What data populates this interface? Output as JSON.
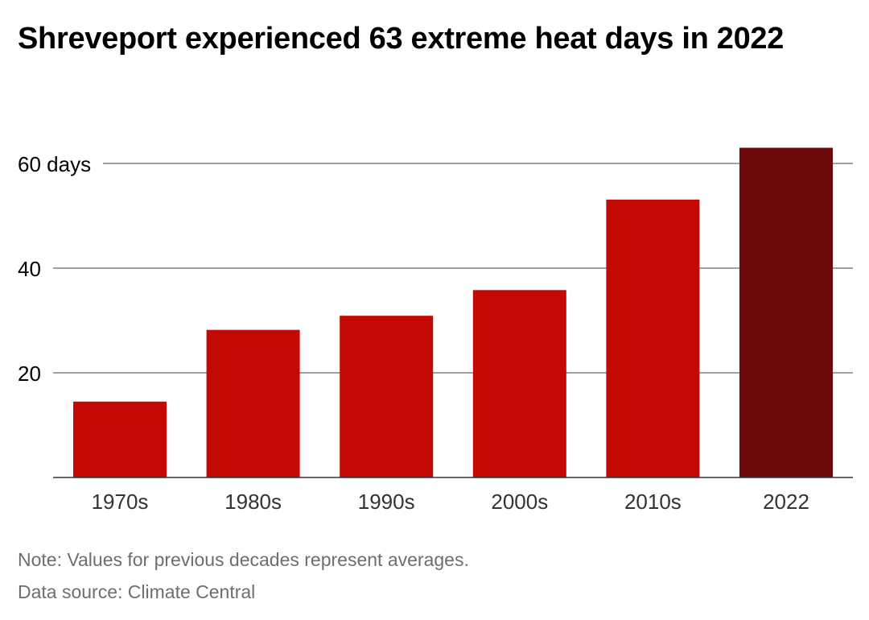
{
  "title": "Shreveport experienced 63 extreme heat days in 2022",
  "note": "Note: Values for previous decades represent averages.",
  "source": "Data source: Climate Central",
  "colors": {
    "bar": "#c20903",
    "highlight": "#6b090b",
    "gridline": "#666666",
    "baseline": "#333333"
  },
  "chart_data": {
    "type": "bar",
    "title": "Shreveport experienced 63 extreme heat days in 2022",
    "xlabel": "",
    "ylabel": "",
    "categories": [
      "1970s",
      "1980s",
      "1990s",
      "2000s",
      "2010s",
      "2022"
    ],
    "values": [
      14.5,
      28.2,
      30.9,
      35.8,
      53.1,
      63.0
    ],
    "highlight_index": 5,
    "ylim": [
      0,
      60
    ],
    "yticks": [
      20,
      40,
      60
    ],
    "ytick_labels": [
      "20",
      "40",
      "60 days"
    ],
    "grid": true,
    "legend": "none"
  }
}
